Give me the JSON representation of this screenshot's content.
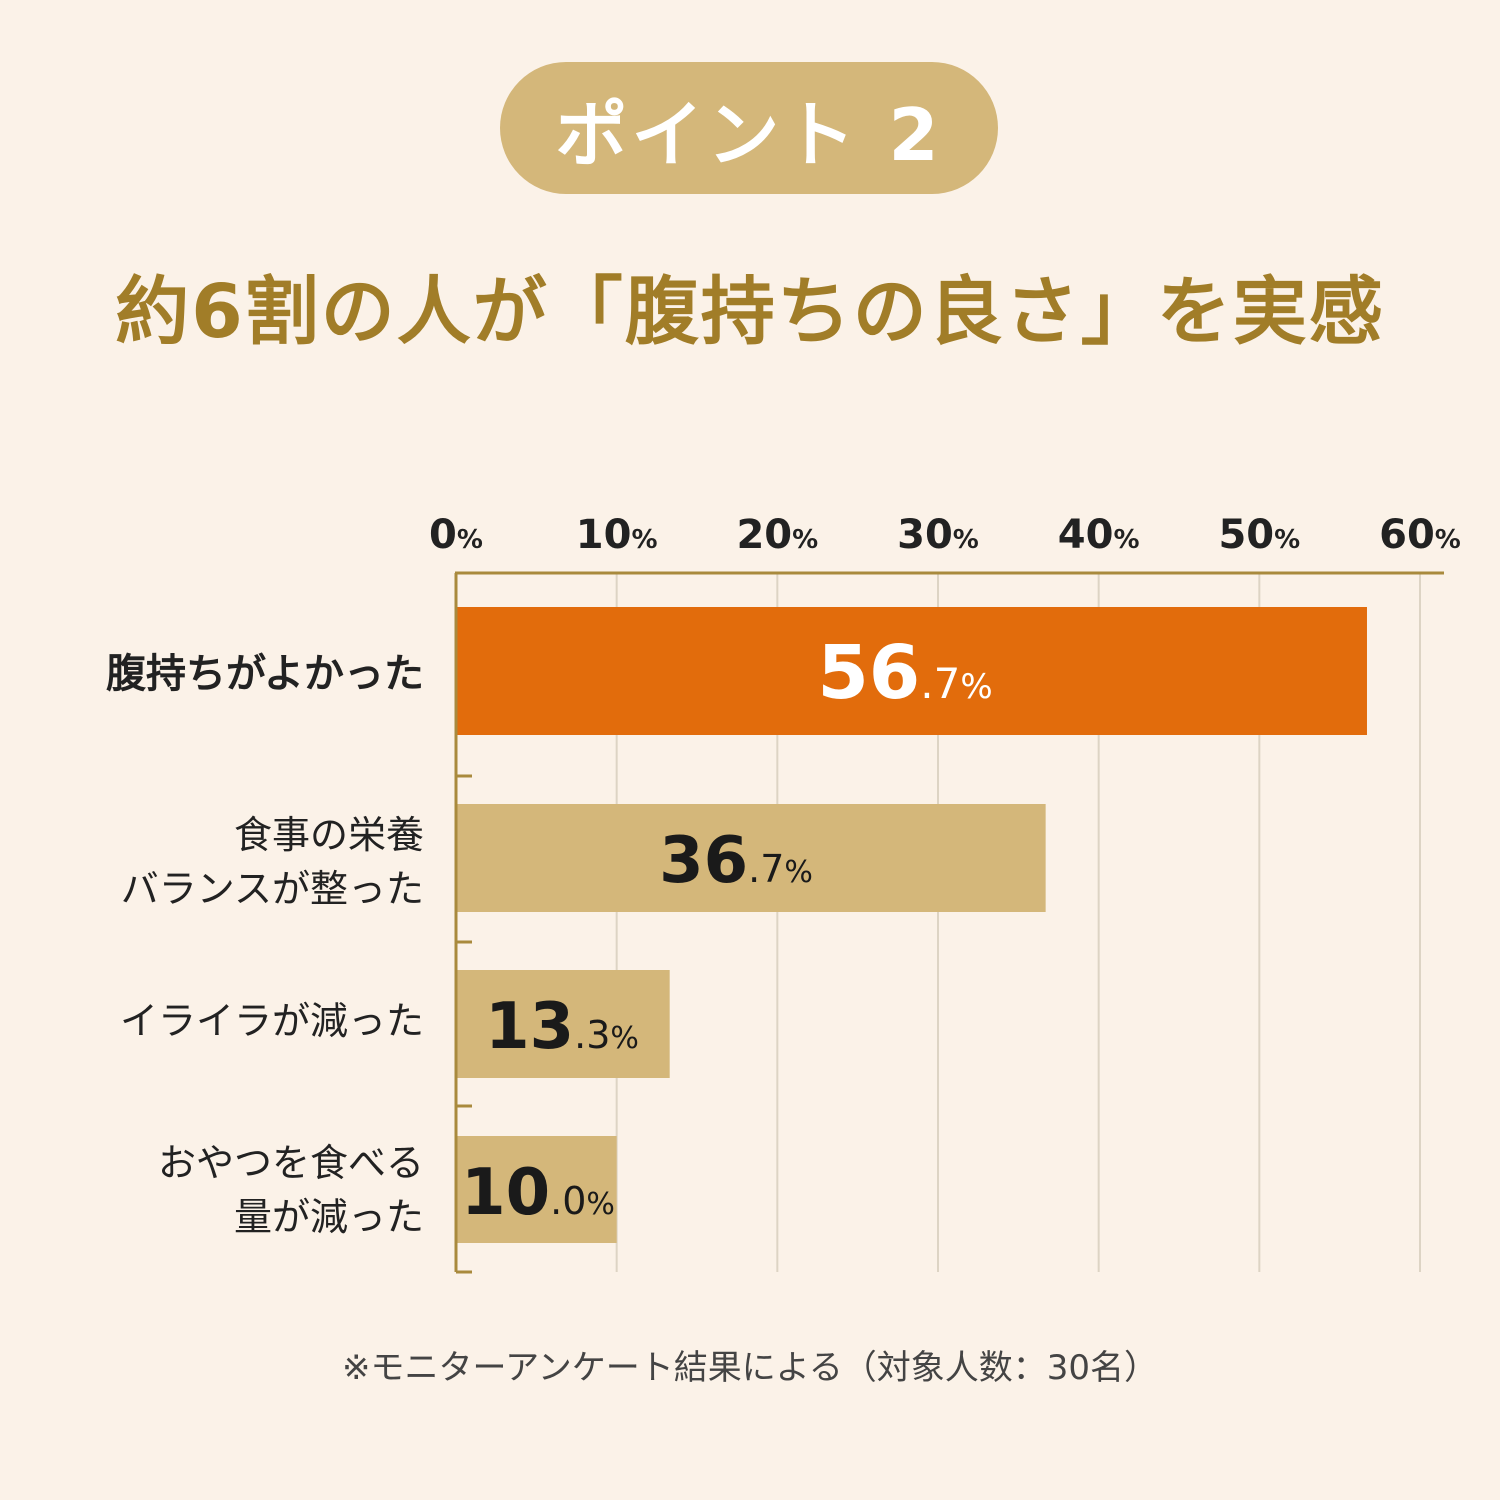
{
  "badge": {
    "text": "ポイント 2"
  },
  "headline": "約6割の人が「腹持ちの良さ」を実感",
  "footnote": "※モニターアンケート結果による（対象人数：30名）",
  "colors": {
    "background": "#fbf2e8",
    "highlight_bar": "#e26c0c",
    "normal_bar": "#d4b77a",
    "gold_text": "#a17d28",
    "axis": "#a98a3d",
    "grid": "#ddd4c4"
  },
  "chart_data": {
    "type": "bar",
    "orientation": "horizontal",
    "title": "約6割の人が「腹持ちの良さ」を実感",
    "xlim": [
      0,
      60
    ],
    "x_ticks": [
      0,
      10,
      20,
      30,
      40,
      50,
      60
    ],
    "tick_unit": "%",
    "grid": true,
    "categories": [
      {
        "lines": [
          "腹持ちがよかった"
        ],
        "emphasis": true
      },
      {
        "lines": [
          "食事の栄養",
          "バランスが整った"
        ],
        "emphasis": false
      },
      {
        "lines": [
          "イライラが減った"
        ],
        "emphasis": false
      },
      {
        "lines": [
          "おやつを食べる",
          "量が減った"
        ],
        "emphasis": false
      }
    ],
    "values": [
      56.7,
      36.7,
      13.3,
      10.0
    ],
    "value_labels": [
      {
        "int": "56",
        "dec": ".7",
        "unit": "%"
      },
      {
        "int": "36",
        "dec": ".7",
        "unit": "%"
      },
      {
        "int": "13",
        "dec": ".3",
        "unit": "%"
      },
      {
        "int": "10",
        "dec": ".0",
        "unit": "%"
      }
    ]
  }
}
